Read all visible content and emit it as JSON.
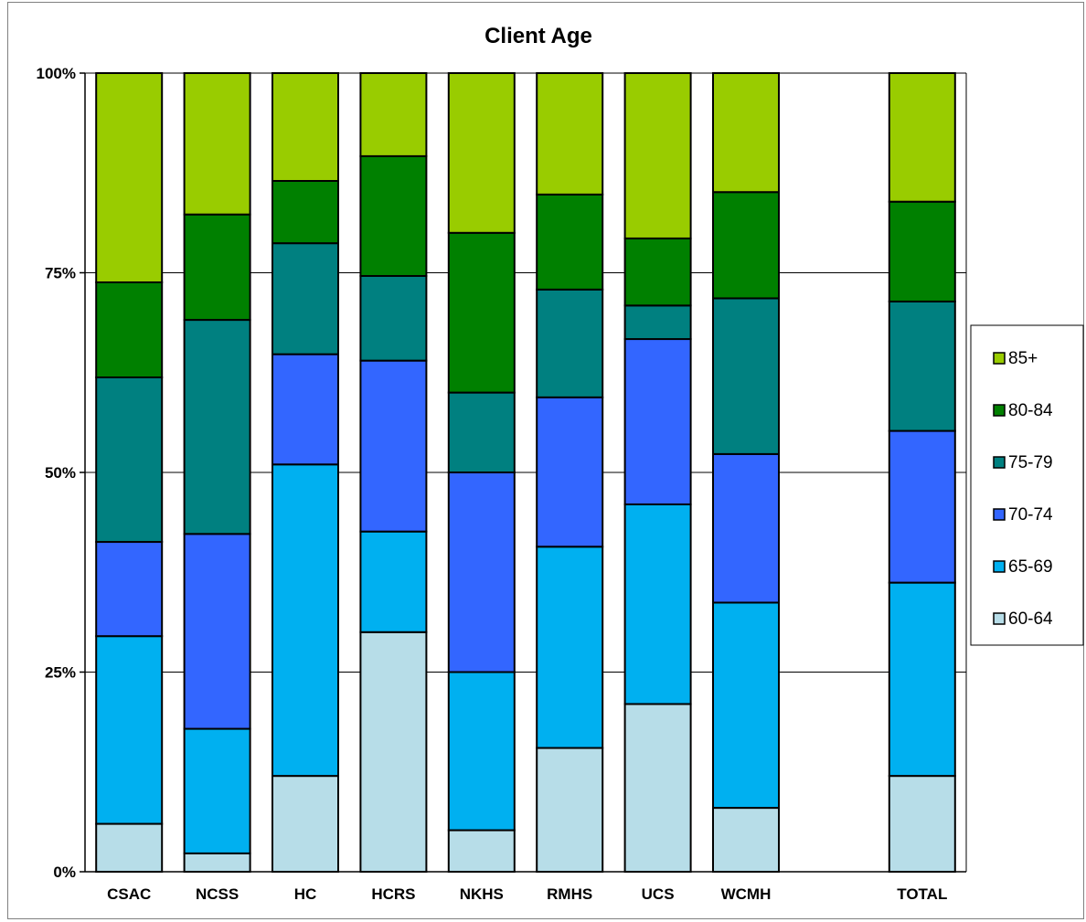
{
  "chart_data": {
    "type": "bar",
    "stacked": true,
    "percent": true,
    "title": "Client Age",
    "xlabel": "",
    "ylabel": "",
    "ylim": [
      0,
      100
    ],
    "yticks": [
      "0%",
      "25%",
      "50%",
      "75%",
      "100%"
    ],
    "grid": true,
    "legend_position": "right",
    "categories": [
      "CSAC",
      "NCSS",
      "HC",
      "HCRS",
      "NKHS",
      "RMHS",
      "UCS",
      "WCMH",
      "",
      "TOTAL"
    ],
    "series": [
      {
        "name": "60-64",
        "color": "#B7DDE8",
        "values": [
          6,
          2.3,
          12,
          30,
          5.2,
          15.5,
          21,
          8,
          null,
          12
        ]
      },
      {
        "name": "65-69",
        "color": "#00B0F0",
        "values": [
          23.5,
          15.6,
          39,
          12.6,
          19.8,
          25.2,
          25,
          25.7,
          null,
          24.2
        ]
      },
      {
        "name": "70-74",
        "color": "#3366FF",
        "values": [
          11.8,
          24.4,
          13.8,
          21.4,
          25,
          18.7,
          20.7,
          18.6,
          null,
          19
        ]
      },
      {
        "name": "75-79",
        "color": "#008080",
        "values": [
          20.6,
          26.8,
          13.9,
          10.6,
          10,
          13.5,
          4.2,
          19.5,
          null,
          16.2
        ]
      },
      {
        "name": "80-84",
        "color": "#008000",
        "values": [
          11.9,
          13.2,
          7.8,
          15,
          20,
          11.9,
          8.4,
          13.3,
          null,
          12.5
        ]
      },
      {
        "name": "85+",
        "color": "#99CC00",
        "values": [
          26.2,
          17.7,
          13.5,
          10.4,
          20,
          15.2,
          20.7,
          14.9,
          null,
          16.1
        ]
      }
    ]
  }
}
